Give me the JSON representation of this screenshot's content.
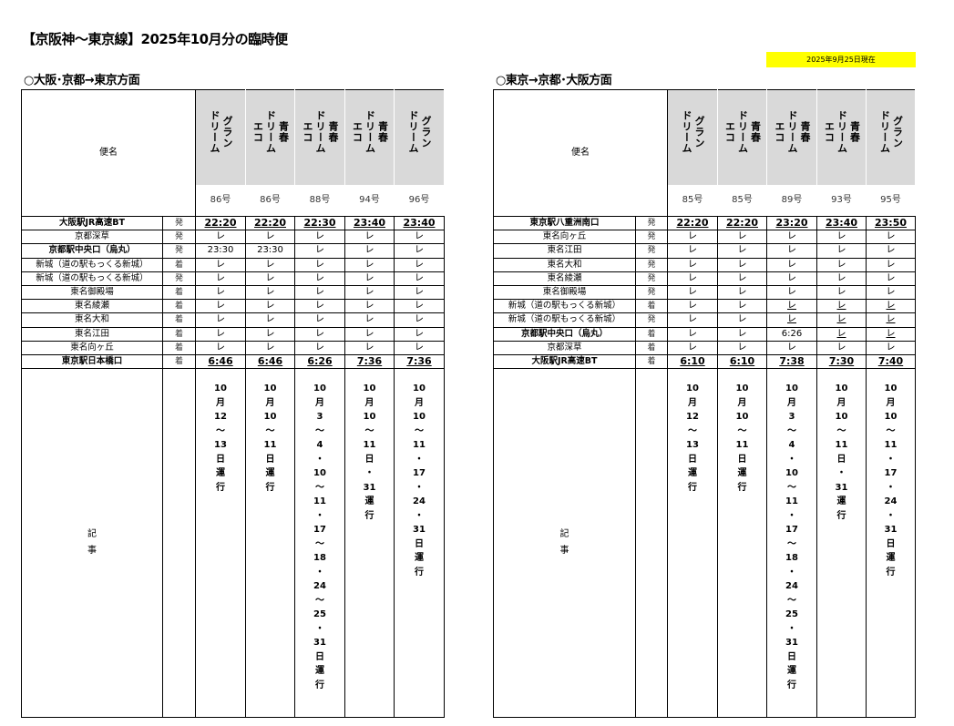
{
  "title": "【京阪神～東京線】2025年10月分の臨時便",
  "as_of": "2025年9月25日現在",
  "tables": [
    {
      "section": "○大阪･京都→東京方面",
      "name_header": "便名",
      "notes_label": "記\n事",
      "services": [
        {
          "name": "グラン\nドリーム",
          "number": "86号",
          "notes": "10月12～13日運行"
        },
        {
          "name": "青春\nドリーム\nエコ",
          "number": "86号",
          "notes": "10月10～11日運行"
        },
        {
          "name": "青春\nドリーム\nエコ",
          "number": "88号",
          "notes": "10月3～4・10～11・17～18・24～25・31日運行"
        },
        {
          "name": "青春\nドリーム\nエコ",
          "number": "94号",
          "notes": "10月10～11日・31運行"
        },
        {
          "name": "グラン\nドリーム",
          "number": "96号",
          "notes": "10月10～11・17・24・31日運行"
        }
      ],
      "rows": [
        {
          "station": "大阪駅JR高速BT",
          "type": "発",
          "bold": true,
          "cells": [
            "22:20",
            "22:20",
            "22:30",
            "23:40",
            "23:40"
          ]
        },
        {
          "station": "京都深草",
          "type": "発",
          "cells": [
            "レ",
            "レ",
            "レ",
            "レ",
            "レ"
          ]
        },
        {
          "station": "京都駅中央口（烏丸）",
          "type": "発",
          "boldname": true,
          "cells": [
            "23:30",
            "23:30",
            "レ",
            "レ",
            "レ"
          ]
        },
        {
          "station": "新城（道の駅もっくる新城）",
          "type": "着",
          "cells": [
            "レ",
            "レ",
            "レ",
            "レ",
            "レ"
          ]
        },
        {
          "station": "新城（道の駅もっくる新城）",
          "type": "発",
          "cells": [
            "レ",
            "レ",
            "レ",
            "レ",
            "レ"
          ]
        },
        {
          "station": "東名御殿場",
          "type": "着",
          "cells": [
            "レ",
            "レ",
            "レ",
            "レ",
            "レ"
          ]
        },
        {
          "station": "東名綾瀬",
          "type": "着",
          "cells": [
            "レ",
            "レ",
            "レ",
            "レ",
            "レ"
          ]
        },
        {
          "station": "東名大和",
          "type": "着",
          "cells": [
            "レ",
            "レ",
            "レ",
            "レ",
            "レ"
          ]
        },
        {
          "station": "東名江田",
          "type": "着",
          "cells": [
            "レ",
            "レ",
            "レ",
            "レ",
            "レ"
          ]
        },
        {
          "station": "東名向ヶ丘",
          "type": "着",
          "cells": [
            "レ",
            "レ",
            "レ",
            "レ",
            "レ"
          ]
        },
        {
          "station": "東京駅日本橋口",
          "type": "着",
          "bold": true,
          "cells": [
            "6:46",
            "6:46",
            "6:26",
            "7:36",
            "7:36"
          ]
        }
      ]
    },
    {
      "section": "○東京→京都･大阪方面",
      "name_header": "便名",
      "notes_label": "記\n事",
      "services": [
        {
          "name": "グラン\nドリーム",
          "number": "85号",
          "notes": "10月12～13日運行"
        },
        {
          "name": "青春\nドリーム\nエコ",
          "number": "85号",
          "notes": "10月10～11日運行"
        },
        {
          "name": "青春\nドリーム\nエコ",
          "number": "89号",
          "notes": "10月3～4・10～11・17～18・24～25・31日運行"
        },
        {
          "name": "青春\nドリーム\nエコ",
          "number": "93号",
          "notes": "10月10～11日・31運行"
        },
        {
          "name": "グラン\nドリーム",
          "number": "95号",
          "notes": "10月10～11・17・24・31日運行"
        }
      ],
      "rows": [
        {
          "station": "東京駅八重洲南口",
          "type": "発",
          "bold": true,
          "cells": [
            "22:20",
            "22:20",
            "23:20",
            "23:40",
            "23:50"
          ]
        },
        {
          "station": "東名向ヶ丘",
          "type": "発",
          "cells": [
            "レ",
            "レ",
            "レ",
            "レ",
            "レ"
          ]
        },
        {
          "station": "東名江田",
          "type": "発",
          "cells": [
            "レ",
            "レ",
            "レ",
            "レ",
            "レ"
          ]
        },
        {
          "station": "東名大和",
          "type": "発",
          "cells": [
            "レ",
            "レ",
            "レ",
            "レ",
            "レ"
          ]
        },
        {
          "station": "東名綾瀬",
          "type": "発",
          "cells": [
            "レ",
            "レ",
            "レ",
            "レ",
            "レ"
          ]
        },
        {
          "station": "東名御殿場",
          "type": "発",
          "cells": [
            "レ",
            "レ",
            "レ",
            "レ",
            "レ"
          ]
        },
        {
          "station": "新城（道の駅もっくる新城）",
          "type": "着",
          "cells": [
            "レ",
            "レ",
            "レ",
            "レ",
            "レ"
          ],
          "underline": [
            false,
            false,
            true,
            true,
            true
          ]
        },
        {
          "station": "新城（道の駅もっくる新城）",
          "type": "発",
          "cells": [
            "レ",
            "レ",
            "レ",
            "レ",
            "レ"
          ],
          "underline": [
            false,
            false,
            true,
            true,
            true
          ]
        },
        {
          "station": "京都駅中央口（烏丸）",
          "type": "着",
          "boldname": true,
          "cells": [
            "レ",
            "レ",
            "6:26",
            "レ",
            "レ"
          ],
          "underline": [
            false,
            false,
            false,
            true,
            true
          ]
        },
        {
          "station": "京都深草",
          "type": "着",
          "cells": [
            "レ",
            "レ",
            "レ",
            "レ",
            "レ"
          ]
        },
        {
          "station": "大阪駅JR高速BT",
          "type": "着",
          "bold": true,
          "cells": [
            "6:10",
            "6:10",
            "7:38",
            "7:30",
            "7:40"
          ]
        }
      ]
    }
  ]
}
